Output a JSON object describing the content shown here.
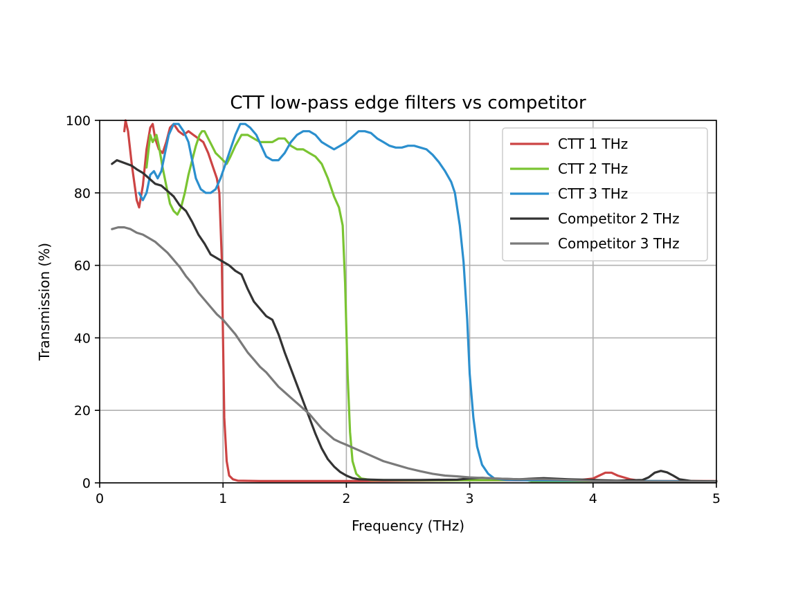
{
  "chart_data": {
    "type": "line",
    "title": "CTT low-pass edge filters vs competitor",
    "xlabel": "Frequency (THz)",
    "ylabel": "Transmission (%)",
    "xlim": [
      0,
      5
    ],
    "ylim": [
      0,
      100
    ],
    "xticks": [
      0,
      1,
      2,
      3,
      4,
      5
    ],
    "yticks": [
      0,
      20,
      40,
      60,
      80,
      100
    ],
    "grid": true,
    "legend_position": "top-right",
    "series": [
      {
        "name": "CTT 1 THz",
        "color": "#cc4444",
        "points": [
          [
            0.2,
            97
          ],
          [
            0.21,
            100
          ],
          [
            0.23,
            97
          ],
          [
            0.26,
            88
          ],
          [
            0.3,
            78
          ],
          [
            0.32,
            76
          ],
          [
            0.35,
            82
          ],
          [
            0.38,
            92
          ],
          [
            0.41,
            98
          ],
          [
            0.43,
            99
          ],
          [
            0.45,
            95
          ],
          [
            0.48,
            92
          ],
          [
            0.51,
            91
          ],
          [
            0.54,
            94
          ],
          [
            0.57,
            98
          ],
          [
            0.6,
            99
          ],
          [
            0.64,
            97
          ],
          [
            0.68,
            96
          ],
          [
            0.72,
            97
          ],
          [
            0.76,
            96
          ],
          [
            0.8,
            95
          ],
          [
            0.84,
            94
          ],
          [
            0.88,
            91
          ],
          [
            0.92,
            87
          ],
          [
            0.95,
            84
          ],
          [
            0.97,
            80
          ],
          [
            0.99,
            62
          ],
          [
            1.0,
            40
          ],
          [
            1.01,
            18
          ],
          [
            1.03,
            6
          ],
          [
            1.05,
            2
          ],
          [
            1.08,
            1
          ],
          [
            1.12,
            0.6
          ],
          [
            1.3,
            0.5
          ],
          [
            1.6,
            0.5
          ],
          [
            2.0,
            0.5
          ],
          [
            2.5,
            0.6
          ],
          [
            3.0,
            0.7
          ],
          [
            3.5,
            0.7
          ],
          [
            3.9,
            0.8
          ],
          [
            4.0,
            1.2
          ],
          [
            4.05,
            2.0
          ],
          [
            4.1,
            2.8
          ],
          [
            4.15,
            2.8
          ],
          [
            4.2,
            2.0
          ],
          [
            4.3,
            1.0
          ],
          [
            4.4,
            0.5
          ],
          [
            4.7,
            0.5
          ],
          [
            5.0,
            0.5
          ]
        ]
      },
      {
        "name": "CTT 2 THz",
        "color": "#7ac432",
        "points": [
          [
            0.38,
            87
          ],
          [
            0.41,
            96
          ],
          [
            0.43,
            94
          ],
          [
            0.46,
            96
          ],
          [
            0.48,
            93
          ],
          [
            0.51,
            87
          ],
          [
            0.54,
            82
          ],
          [
            0.57,
            77
          ],
          [
            0.6,
            75
          ],
          [
            0.63,
            74
          ],
          [
            0.66,
            76
          ],
          [
            0.69,
            80
          ],
          [
            0.72,
            85
          ],
          [
            0.75,
            89
          ],
          [
            0.78,
            93
          ],
          [
            0.81,
            96
          ],
          [
            0.83,
            97
          ],
          [
            0.85,
            97
          ],
          [
            0.88,
            95
          ],
          [
            0.91,
            93
          ],
          [
            0.94,
            91
          ],
          [
            0.97,
            90
          ],
          [
            1.0,
            89
          ],
          [
            1.03,
            88
          ],
          [
            1.06,
            90
          ],
          [
            1.1,
            93
          ],
          [
            1.15,
            96
          ],
          [
            1.2,
            96
          ],
          [
            1.25,
            95
          ],
          [
            1.3,
            94
          ],
          [
            1.35,
            94
          ],
          [
            1.4,
            94
          ],
          [
            1.45,
            95
          ],
          [
            1.5,
            95
          ],
          [
            1.55,
            93
          ],
          [
            1.6,
            92
          ],
          [
            1.65,
            92
          ],
          [
            1.7,
            91
          ],
          [
            1.75,
            90
          ],
          [
            1.8,
            88
          ],
          [
            1.85,
            84
          ],
          [
            1.9,
            79
          ],
          [
            1.94,
            76
          ],
          [
            1.97,
            71
          ],
          [
            1.99,
            55
          ],
          [
            2.01,
            30
          ],
          [
            2.03,
            14
          ],
          [
            2.05,
            6
          ],
          [
            2.08,
            2.5
          ],
          [
            2.12,
            1.2
          ],
          [
            2.2,
            0.8
          ],
          [
            2.5,
            0.7
          ],
          [
            3.0,
            0.7
          ],
          [
            3.45,
            0.8
          ],
          [
            3.5,
            0.5
          ],
          [
            4.0,
            0.5
          ],
          [
            4.3,
            0.5
          ],
          [
            5.0,
            0.4
          ]
        ]
      },
      {
        "name": "CTT 3 THz",
        "color": "#2b8fce",
        "points": [
          [
            0.32,
            80
          ],
          [
            0.35,
            78
          ],
          [
            0.38,
            80
          ],
          [
            0.41,
            85
          ],
          [
            0.44,
            86
          ],
          [
            0.47,
            84
          ],
          [
            0.5,
            86
          ],
          [
            0.53,
            91
          ],
          [
            0.56,
            96
          ],
          [
            0.6,
            99
          ],
          [
            0.64,
            99
          ],
          [
            0.68,
            97
          ],
          [
            0.72,
            94
          ],
          [
            0.75,
            89
          ],
          [
            0.78,
            84
          ],
          [
            0.82,
            81
          ],
          [
            0.86,
            80
          ],
          [
            0.9,
            80
          ],
          [
            0.94,
            81
          ],
          [
            0.98,
            84
          ],
          [
            1.02,
            88
          ],
          [
            1.06,
            92
          ],
          [
            1.1,
            96
          ],
          [
            1.14,
            99
          ],
          [
            1.18,
            99
          ],
          [
            1.22,
            98
          ],
          [
            1.27,
            96
          ],
          [
            1.31,
            93
          ],
          [
            1.35,
            90
          ],
          [
            1.4,
            89
          ],
          [
            1.45,
            89
          ],
          [
            1.5,
            91
          ],
          [
            1.55,
            94
          ],
          [
            1.6,
            96
          ],
          [
            1.65,
            97
          ],
          [
            1.7,
            97
          ],
          [
            1.75,
            96
          ],
          [
            1.8,
            94
          ],
          [
            1.85,
            93
          ],
          [
            1.9,
            92
          ],
          [
            1.95,
            93
          ],
          [
            2.0,
            94
          ],
          [
            2.05,
            95.5
          ],
          [
            2.1,
            97
          ],
          [
            2.15,
            97
          ],
          [
            2.2,
            96.5
          ],
          [
            2.25,
            95
          ],
          [
            2.3,
            94
          ],
          [
            2.35,
            93
          ],
          [
            2.4,
            92.5
          ],
          [
            2.45,
            92.5
          ],
          [
            2.5,
            93
          ],
          [
            2.55,
            93
          ],
          [
            2.6,
            92.5
          ],
          [
            2.65,
            92
          ],
          [
            2.7,
            90.5
          ],
          [
            2.75,
            88.5
          ],
          [
            2.8,
            86
          ],
          [
            2.85,
            83
          ],
          [
            2.88,
            80
          ],
          [
            2.92,
            71
          ],
          [
            2.95,
            61
          ],
          [
            2.98,
            45
          ],
          [
            3.0,
            30
          ],
          [
            3.03,
            18
          ],
          [
            3.06,
            10
          ],
          [
            3.1,
            5
          ],
          [
            3.15,
            2.5
          ],
          [
            3.2,
            1.2
          ],
          [
            3.3,
            0.8
          ],
          [
            3.5,
            0.7
          ],
          [
            4.0,
            0.6
          ],
          [
            4.5,
            0.5
          ],
          [
            5.0,
            0.4
          ]
        ]
      },
      {
        "name": "Competitor 2 THz",
        "color": "#333333",
        "points": [
          [
            0.1,
            88
          ],
          [
            0.14,
            89
          ],
          [
            0.18,
            88.5
          ],
          [
            0.22,
            88
          ],
          [
            0.26,
            87.5
          ],
          [
            0.3,
            86.5
          ],
          [
            0.35,
            85.5
          ],
          [
            0.4,
            84
          ],
          [
            0.45,
            82.5
          ],
          [
            0.5,
            82
          ],
          [
            0.55,
            80.5
          ],
          [
            0.6,
            79
          ],
          [
            0.65,
            76.5
          ],
          [
            0.7,
            75
          ],
          [
            0.75,
            72
          ],
          [
            0.8,
            68.5
          ],
          [
            0.85,
            66
          ],
          [
            0.9,
            63
          ],
          [
            0.95,
            62
          ],
          [
            1.0,
            61
          ],
          [
            1.05,
            60
          ],
          [
            1.1,
            58.5
          ],
          [
            1.15,
            57.5
          ],
          [
            1.2,
            53.5
          ],
          [
            1.25,
            50
          ],
          [
            1.3,
            48
          ],
          [
            1.35,
            46
          ],
          [
            1.4,
            45
          ],
          [
            1.45,
            41
          ],
          [
            1.5,
            36
          ],
          [
            1.55,
            31.5
          ],
          [
            1.6,
            27
          ],
          [
            1.65,
            22.5
          ],
          [
            1.7,
            18
          ],
          [
            1.75,
            13.5
          ],
          [
            1.8,
            9.5
          ],
          [
            1.85,
            6.5
          ],
          [
            1.9,
            4.5
          ],
          [
            1.95,
            3
          ],
          [
            2.0,
            2
          ],
          [
            2.05,
            1.3
          ],
          [
            2.1,
            1
          ],
          [
            2.3,
            0.8
          ],
          [
            2.6,
            0.8
          ],
          [
            2.9,
            0.9
          ],
          [
            3.0,
            1.2
          ],
          [
            3.1,
            1.4
          ],
          [
            3.2,
            1.2
          ],
          [
            3.4,
            1.0
          ],
          [
            3.6,
            1.3
          ],
          [
            3.8,
            1.0
          ],
          [
            4.0,
            0.8
          ],
          [
            4.2,
            0.6
          ],
          [
            4.4,
            0.8
          ],
          [
            4.45,
            1.5
          ],
          [
            4.5,
            2.8
          ],
          [
            4.55,
            3.3
          ],
          [
            4.6,
            2.9
          ],
          [
            4.65,
            2.0
          ],
          [
            4.7,
            1.0
          ],
          [
            4.8,
            0.5
          ],
          [
            5.0,
            0.4
          ]
        ]
      },
      {
        "name": "Competitor 3 THz",
        "color": "#7a7a7a",
        "points": [
          [
            0.1,
            70
          ],
          [
            0.15,
            70.5
          ],
          [
            0.2,
            70.5
          ],
          [
            0.25,
            70
          ],
          [
            0.3,
            69
          ],
          [
            0.35,
            68.5
          ],
          [
            0.4,
            67.5
          ],
          [
            0.45,
            66.5
          ],
          [
            0.5,
            65
          ],
          [
            0.55,
            63.5
          ],
          [
            0.6,
            61.5
          ],
          [
            0.65,
            59.5
          ],
          [
            0.7,
            57
          ],
          [
            0.75,
            55
          ],
          [
            0.8,
            52.5
          ],
          [
            0.85,
            50.5
          ],
          [
            0.9,
            48.5
          ],
          [
            0.95,
            46.5
          ],
          [
            1.0,
            45
          ],
          [
            1.05,
            43
          ],
          [
            1.1,
            41
          ],
          [
            1.15,
            38.5
          ],
          [
            1.2,
            36
          ],
          [
            1.25,
            34
          ],
          [
            1.3,
            32
          ],
          [
            1.35,
            30.5
          ],
          [
            1.4,
            28.5
          ],
          [
            1.45,
            26.5
          ],
          [
            1.5,
            25
          ],
          [
            1.55,
            23.5
          ],
          [
            1.6,
            22
          ],
          [
            1.65,
            20.5
          ],
          [
            1.7,
            19
          ],
          [
            1.75,
            17
          ],
          [
            1.8,
            15
          ],
          [
            1.85,
            13.5
          ],
          [
            1.9,
            12
          ],
          [
            1.95,
            11.2
          ],
          [
            2.0,
            10.5
          ],
          [
            2.1,
            9
          ],
          [
            2.2,
            7.5
          ],
          [
            2.3,
            6
          ],
          [
            2.4,
            5
          ],
          [
            2.5,
            4
          ],
          [
            2.6,
            3.2
          ],
          [
            2.7,
            2.5
          ],
          [
            2.8,
            2.0
          ],
          [
            2.9,
            1.8
          ],
          [
            3.0,
            1.5
          ],
          [
            3.2,
            1.2
          ],
          [
            3.4,
            1.0
          ],
          [
            3.6,
            1.0
          ],
          [
            3.8,
            0.8
          ],
          [
            4.0,
            0.5
          ],
          [
            4.3,
            0.4
          ],
          [
            5.0,
            0.3
          ]
        ]
      }
    ]
  }
}
